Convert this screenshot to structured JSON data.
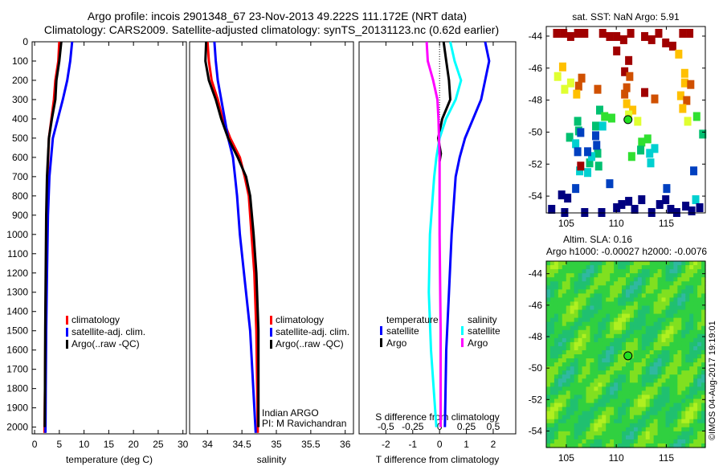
{
  "title_line1": "Argo profile: incois 2901348_67 23-Nov-2013 49.222S 111.172E (NRT data)",
  "title_line2": "Climatology: CARS2009. Satellite-adjusted climatology: synTS_20131123.nc (0.62d earlier)",
  "colors": {
    "climatology": "#ff0000",
    "satellite": "#0000ff",
    "argo": "#000000",
    "s_satellite": "#00ffff",
    "s_argo": "#ff00ff"
  },
  "chart_data": [
    {
      "type": "line",
      "name": "temperature",
      "xlabel": "temperature (deg C)",
      "ylabel": "depth",
      "xlim": [
        -0.5,
        30.7
      ],
      "ylim": [
        2035,
        0
      ],
      "xticks": [
        "0",
        "5",
        "10",
        "15",
        "20",
        "25",
        "30"
      ],
      "yticks": [
        "0",
        "100",
        "200",
        "300",
        "400",
        "500",
        "600",
        "700",
        "800",
        "900",
        "1000",
        "1100",
        "1200",
        "1300",
        "1400",
        "1500",
        "1600",
        "1700",
        "1800",
        "1900",
        "2000"
      ],
      "legend": [
        "climatology",
        "satellite-adj. clim.",
        "Argo(..raw -QC)"
      ],
      "series": [
        {
          "name": "climatology",
          "color": "#ff0000",
          "x": [
            5.0,
            4.8,
            4.2,
            3.9,
            3.4,
            2.9,
            2.6,
            2.45,
            2.3,
            2.2,
            2.1,
            2.0
          ],
          "y": [
            0,
            100,
            200,
            300,
            400,
            500,
            700,
            900,
            1200,
            1500,
            1800,
            2030
          ]
        },
        {
          "name": "satellite-adj. clim.",
          "color": "#0000ff",
          "x": [
            7.6,
            7.2,
            6.6,
            5.7,
            4.7,
            3.7,
            3.0,
            2.7,
            2.5,
            2.35,
            2.25,
            2.2
          ],
          "y": [
            0,
            100,
            200,
            300,
            400,
            500,
            700,
            900,
            1200,
            1500,
            1800,
            2030
          ]
        },
        {
          "name": "Argo(..raw -QC)",
          "color": "#000000",
          "x": [
            5.4,
            5.0,
            4.4,
            4.2,
            3.5,
            2.9,
            2.5,
            2.35,
            2.25,
            2.15,
            2.1,
            2.05
          ],
          "y": [
            0,
            100,
            200,
            300,
            400,
            500,
            700,
            900,
            1200,
            1500,
            1800,
            2000
          ]
        }
      ]
    },
    {
      "type": "line",
      "name": "salinity",
      "xlabel": "salinity",
      "xlim": [
        33.74,
        36.12
      ],
      "ylim": [
        2035,
        0
      ],
      "xticks": [
        "34",
        "34.5",
        "35",
        "35.5",
        "36"
      ],
      "legend": [
        "climatology",
        "satellite-adj. clim.",
        "Argo(..raw -QC)"
      ],
      "annotation": [
        "Indian ARGO",
        "PI: M Ravichandran"
      ],
      "series": [
        {
          "name": "climatology",
          "color": "#ff0000",
          "x": [
            34.0,
            34.02,
            34.06,
            34.15,
            34.22,
            34.33,
            34.47,
            34.54,
            34.6,
            34.64,
            34.68,
            34.71,
            34.73
          ],
          "y": [
            0,
            100,
            200,
            300,
            400,
            500,
            600,
            700,
            800,
            1000,
            1200,
            1500,
            2030
          ]
        },
        {
          "name": "satellite-adj. clim.",
          "color": "#0000ff",
          "x": [
            34.1,
            34.12,
            34.15,
            34.2,
            34.25,
            34.3,
            34.37,
            34.4,
            34.43,
            34.47,
            34.53,
            34.62,
            34.7
          ],
          "y": [
            0,
            100,
            200,
            300,
            400,
            500,
            600,
            700,
            800,
            1000,
            1200,
            1500,
            2030
          ]
        },
        {
          "name": "Argo(..raw -QC)",
          "color": "#000000",
          "x": [
            33.98,
            33.97,
            34.02,
            34.12,
            34.2,
            34.3,
            34.44,
            34.56,
            34.62,
            34.67,
            34.71,
            34.74,
            34.74
          ],
          "y": [
            0,
            100,
            200,
            300,
            400,
            500,
            600,
            700,
            800,
            1000,
            1200,
            1500,
            2000
          ]
        }
      ]
    },
    {
      "type": "line",
      "name": "difference",
      "xlabel": "T difference from climatology",
      "x2label": "S difference from climatology",
      "xlim": [
        -3,
        2.84
      ],
      "ylim": [
        2035,
        0
      ],
      "xticks": [
        "-2",
        "-1",
        "0",
        "1",
        "2"
      ],
      "x2ticks": [
        "-0.5",
        "-0.25",
        "0",
        "0.25",
        "0.5"
      ],
      "legend_temperature": {
        "title": "temperature",
        "items": [
          "satellite",
          "Argo"
        ]
      },
      "legend_salinity": {
        "title": "salinity",
        "items": [
          "satellite",
          "Argo"
        ]
      },
      "series": [
        {
          "name": "temperature satellite",
          "color": "#0000ff",
          "x": [
            1.7,
            1.85,
            1.7,
            1.55,
            1.25,
            0.95,
            0.75,
            0.6,
            0.45,
            0.35,
            0.25,
            0.2
          ],
          "y": [
            0,
            100,
            200,
            300,
            400,
            500,
            600,
            700,
            1000,
            1300,
            1600,
            2000
          ]
        },
        {
          "name": "temperature Argo",
          "color": "#000000",
          "x": [
            0.15,
            0.25,
            0.35,
            0.4,
            0.1,
            -0.05,
            0.05,
            0.0
          ],
          "y": [
            0,
            100,
            200,
            300,
            400,
            500,
            580,
            620
          ]
        },
        {
          "name": "salinity satellite",
          "color": "#00ffff",
          "s": [
            0.1,
            0.14,
            0.2,
            0.15,
            0.06,
            0.0,
            -0.03,
            -0.05,
            -0.09,
            -0.1,
            -0.08,
            -0.03
          ],
          "y": [
            0,
            100,
            200,
            300,
            400,
            500,
            600,
            700,
            1000,
            1300,
            1600,
            2000
          ]
        },
        {
          "name": "salinity Argo",
          "color": "#ff00ff",
          "s": [
            -0.12,
            -0.11,
            -0.06,
            -0.02,
            -0.01,
            0.0,
            0.0,
            0.01,
            0.01
          ],
          "y": [
            0,
            100,
            200,
            300,
            400,
            600,
            1000,
            1500,
            2000
          ]
        }
      ]
    },
    {
      "type": "heatmap",
      "name": "sst-map",
      "title": "sat. SST: NaN Argo: 5.91",
      "xlim": [
        103,
        118.9
      ],
      "ylim": [
        -55.05,
        -43.4
      ],
      "xticks": [
        "105",
        "110",
        "115"
      ],
      "yticks": [
        "-44",
        "-46",
        "-48",
        "-50",
        "-52",
        "-54"
      ],
      "argo_position": [
        111.17,
        -49.22
      ],
      "cells": [
        [
          104,
          -43.8,
          0
        ],
        [
          104.7,
          -43.8,
          0
        ],
        [
          105.4,
          -44,
          0
        ],
        [
          106.1,
          -43.8,
          0
        ],
        [
          106.8,
          -43.8,
          0
        ],
        [
          108.6,
          -43.8,
          0
        ],
        [
          109.3,
          -44,
          0
        ],
        [
          110,
          -44,
          0
        ],
        [
          110.7,
          -44.2,
          0
        ],
        [
          111.4,
          -43.8,
          0
        ],
        [
          112.8,
          -44,
          0
        ],
        [
          113.5,
          -44.2,
          0
        ],
        [
          114.2,
          -43.8,
          0
        ],
        [
          114.9,
          -44.4,
          0
        ],
        [
          115.6,
          -44.6,
          0
        ],
        [
          116.6,
          -43.8,
          0
        ],
        [
          117.3,
          -43.8,
          0
        ],
        [
          110,
          -44.9,
          0
        ],
        [
          111.2,
          -45.5,
          0
        ],
        [
          110.8,
          -46.2,
          0
        ],
        [
          111.3,
          -46.5,
          1
        ],
        [
          112.8,
          -47.5,
          0
        ],
        [
          106.5,
          -46.6,
          1
        ],
        [
          106.2,
          -47.1,
          1
        ],
        [
          108.1,
          -47.3,
          1
        ],
        [
          111.0,
          -47.2,
          1
        ],
        [
          110.8,
          -47.6,
          1
        ],
        [
          104.6,
          -45.9,
          2
        ],
        [
          104.1,
          -46.5,
          3
        ],
        [
          105.4,
          -46.9,
          3
        ],
        [
          104.8,
          -47.3,
          3
        ],
        [
          106,
          -47.6,
          2
        ],
        [
          113.8,
          -47.9,
          1
        ],
        [
          116.2,
          -45.1,
          2
        ],
        [
          116.8,
          -46.3,
          2
        ],
        [
          116.8,
          -46.9,
          2
        ],
        [
          117.4,
          -47,
          1
        ],
        [
          116.4,
          -47.7,
          2
        ],
        [
          117,
          -48,
          1
        ],
        [
          116.6,
          -48.5,
          2
        ],
        [
          111,
          -48.2,
          2
        ],
        [
          111.6,
          -48.6,
          2
        ],
        [
          111.2,
          -48.9,
          3
        ],
        [
          112.1,
          -49.3,
          3
        ],
        [
          117.1,
          -49.3,
          3
        ],
        [
          108.3,
          -48.6,
          5
        ],
        [
          108.8,
          -49,
          4
        ],
        [
          109.5,
          -49.1,
          4
        ],
        [
          106.1,
          -49.3,
          5
        ],
        [
          106.2,
          -49.9,
          5
        ],
        [
          107.9,
          -49.6,
          5
        ],
        [
          105.3,
          -50.3,
          5
        ],
        [
          118,
          -49,
          4
        ],
        [
          118.6,
          -50.1,
          5
        ],
        [
          112.5,
          -50.6,
          4
        ],
        [
          113.1,
          -50.4,
          4
        ],
        [
          112.4,
          -51.1,
          5
        ],
        [
          113.3,
          -51.3,
          6
        ],
        [
          113.8,
          -51,
          6
        ],
        [
          113.4,
          -51.9,
          6
        ],
        [
          111.5,
          -51.5,
          4
        ],
        [
          108.1,
          -51.3,
          5
        ],
        [
          107.3,
          -51.9,
          5
        ],
        [
          108.2,
          -52.1,
          5
        ],
        [
          108.6,
          -49.6,
          6
        ],
        [
          105.9,
          -50.7,
          6
        ],
        [
          107.5,
          -51.5,
          6
        ],
        [
          107.1,
          -52.5,
          6
        ],
        [
          106.3,
          -52.4,
          6
        ],
        [
          117.9,
          -54.2,
          6
        ],
        [
          106.4,
          -50,
          7
        ],
        [
          107.9,
          -50.2,
          7
        ],
        [
          108,
          -50.8,
          7
        ],
        [
          106.1,
          -51.2,
          7
        ],
        [
          107.1,
          -51.2,
          7
        ],
        [
          117.7,
          -52.4,
          7
        ],
        [
          109.3,
          -53.2,
          7
        ],
        [
          115,
          -53.5,
          7
        ],
        [
          105.9,
          -53.5,
          7
        ],
        [
          104.5,
          -53.9,
          8
        ],
        [
          105.1,
          -54.1,
          8
        ],
        [
          103.5,
          -54.8,
          8
        ],
        [
          104.8,
          -55,
          8
        ],
        [
          106.8,
          -55,
          8
        ],
        [
          108.5,
          -55,
          8
        ],
        [
          110,
          -54.7,
          8
        ],
        [
          110.5,
          -54.5,
          8
        ],
        [
          111.2,
          -54.3,
          8
        ],
        [
          111.8,
          -54.8,
          8
        ],
        [
          112.5,
          -54.2,
          8
        ],
        [
          113.5,
          -55,
          8
        ],
        [
          114.3,
          -54.5,
          8
        ],
        [
          114.9,
          -54.2,
          8
        ],
        [
          115.4,
          -54.8,
          8
        ],
        [
          116,
          -55,
          8
        ],
        [
          116.9,
          -54.6,
          8
        ],
        [
          117.5,
          -54.9,
          8
        ],
        [
          118.3,
          -54.7,
          8
        ],
        [
          106.4,
          -52.1,
          0
        ]
      ]
    },
    {
      "type": "heatmap",
      "name": "sla-map",
      "title_line1": "Altim. SLA: 0.16",
      "title_line2": "Argo h1000: -0.00027 h2000: -0.0076",
      "xlim": [
        103,
        118.9
      ],
      "ylim": [
        -55.05,
        -43.2
      ],
      "xticks": [
        "105",
        "110",
        "115"
      ],
      "yticks": [
        "-44",
        "-46",
        "-48",
        "-50",
        "-52",
        "-54"
      ],
      "argo_position": [
        111.17,
        -49.22
      ]
    }
  ],
  "credit": "©IMOS 04-Aug-2017 19:19:01"
}
